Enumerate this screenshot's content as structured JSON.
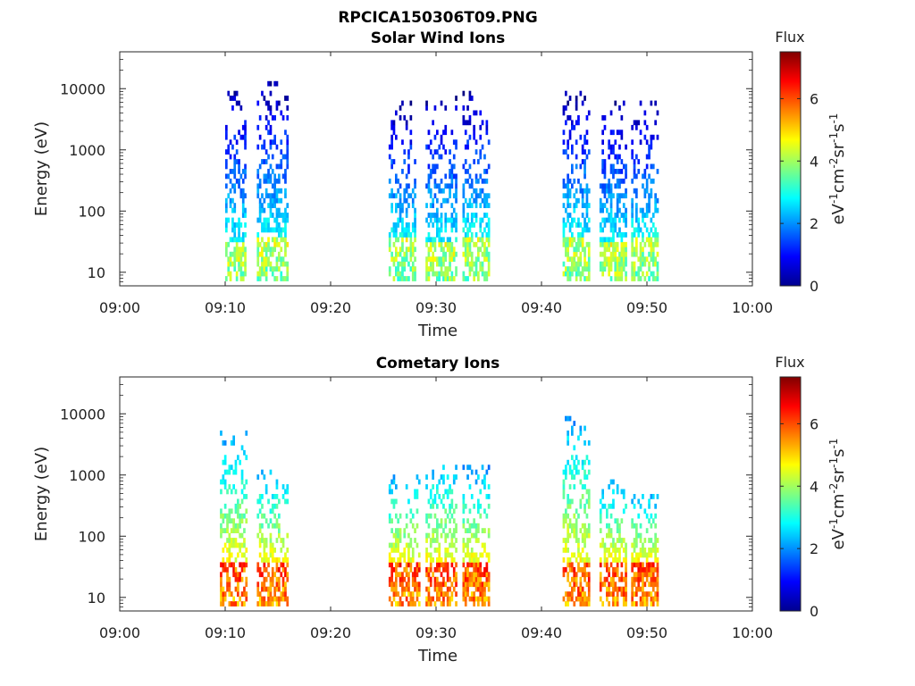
{
  "figure_title": "RPCICA150306T09.PNG",
  "colors": {
    "axis": "#262626",
    "background": "#ffffff"
  },
  "chart_data": [
    {
      "type": "heatmap",
      "title": "Solar Wind Ions",
      "xlabel": "Time",
      "ylabel": "Energy (eV)",
      "x_ticks": [
        "09:00",
        "09:10",
        "09:20",
        "09:30",
        "09:40",
        "09:50",
        "10:00"
      ],
      "xlim": [
        "09:00",
        "10:00"
      ],
      "y_scale": "log",
      "y_ticks": [
        "10",
        "100",
        "1000",
        "10000"
      ],
      "ylim": [
        6,
        40000
      ],
      "colorbar": {
        "label": "Flux",
        "units": "eV-1cm-2sr-1s-1",
        "ticks": [
          "0",
          "2",
          "4",
          "6"
        ],
        "range": [
          0,
          7.5
        ],
        "colormap": "jet"
      },
      "bursts": [
        {
          "start": "09:10:00",
          "end": "09:12:00",
          "emin": 7,
          "emax": 12000,
          "core_emax": 30,
          "peak_flux": 5.0
        },
        {
          "start": "09:13:00",
          "end": "09:16:00",
          "emin": 7,
          "emax": 14000,
          "core_emax": 40,
          "peak_flux": 5.0
        },
        {
          "start": "09:25:30",
          "end": "09:28:00",
          "emin": 7,
          "emax": 7000,
          "core_emax": 40,
          "peak_flux": 5.0
        },
        {
          "start": "09:29:00",
          "end": "09:32:00",
          "emin": 7,
          "emax": 8000,
          "core_emax": 30,
          "peak_flux": 5.0
        },
        {
          "start": "09:32:30",
          "end": "09:35:00",
          "emin": 7,
          "emax": 9000,
          "core_emax": 40,
          "peak_flux": 5.0
        },
        {
          "start": "09:42:00",
          "end": "09:44:30",
          "emin": 7,
          "emax": 9000,
          "core_emax": 40,
          "peak_flux": 5.0
        },
        {
          "start": "09:45:30",
          "end": "09:48:00",
          "emin": 7,
          "emax": 7000,
          "core_emax": 30,
          "peak_flux": 5.0
        },
        {
          "start": "09:48:30",
          "end": "09:51:00",
          "emin": 7,
          "emax": 6000,
          "core_emax": 40,
          "peak_flux": 5.0
        }
      ]
    },
    {
      "type": "heatmap",
      "title": "Cometary Ions",
      "xlabel": "Time",
      "ylabel": "Energy (eV)",
      "x_ticks": [
        "09:00",
        "09:10",
        "09:20",
        "09:30",
        "09:40",
        "09:50",
        "10:00"
      ],
      "xlim": [
        "09:00",
        "10:00"
      ],
      "y_scale": "log",
      "y_ticks": [
        "10",
        "100",
        "1000",
        "10000"
      ],
      "ylim": [
        6,
        40000
      ],
      "colorbar": {
        "label": "Flux",
        "units": "eV-1cm-2sr-1s-1",
        "ticks": [
          "0",
          "2",
          "4",
          "6"
        ],
        "range": [
          0,
          7.5
        ],
        "colormap": "jet"
      },
      "bursts": [
        {
          "start": "09:09:30",
          "end": "09:12:00",
          "emin": 7,
          "emax": 5000,
          "core_emax": 40,
          "peak_flux": 6.8
        },
        {
          "start": "09:13:00",
          "end": "09:16:00",
          "emin": 7,
          "emax": 1600,
          "core_emax": 40,
          "peak_flux": 6.8
        },
        {
          "start": "09:25:30",
          "end": "09:28:30",
          "emin": 7,
          "emax": 1300,
          "core_emax": 40,
          "peak_flux": 6.8
        },
        {
          "start": "09:29:00",
          "end": "09:32:00",
          "emin": 7,
          "emax": 2000,
          "core_emax": 40,
          "peak_flux": 6.8
        },
        {
          "start": "09:32:30",
          "end": "09:35:00",
          "emin": 7,
          "emax": 1400,
          "core_emax": 40,
          "peak_flux": 6.8
        },
        {
          "start": "09:42:00",
          "end": "09:44:30",
          "emin": 7,
          "emax": 10000,
          "core_emax": 40,
          "peak_flux": 6.8
        },
        {
          "start": "09:45:30",
          "end": "09:48:00",
          "emin": 7,
          "emax": 900,
          "core_emax": 40,
          "peak_flux": 6.8
        },
        {
          "start": "09:48:30",
          "end": "09:51:00",
          "emin": 7,
          "emax": 600,
          "core_emax": 40,
          "peak_flux": 6.8
        }
      ]
    }
  ]
}
